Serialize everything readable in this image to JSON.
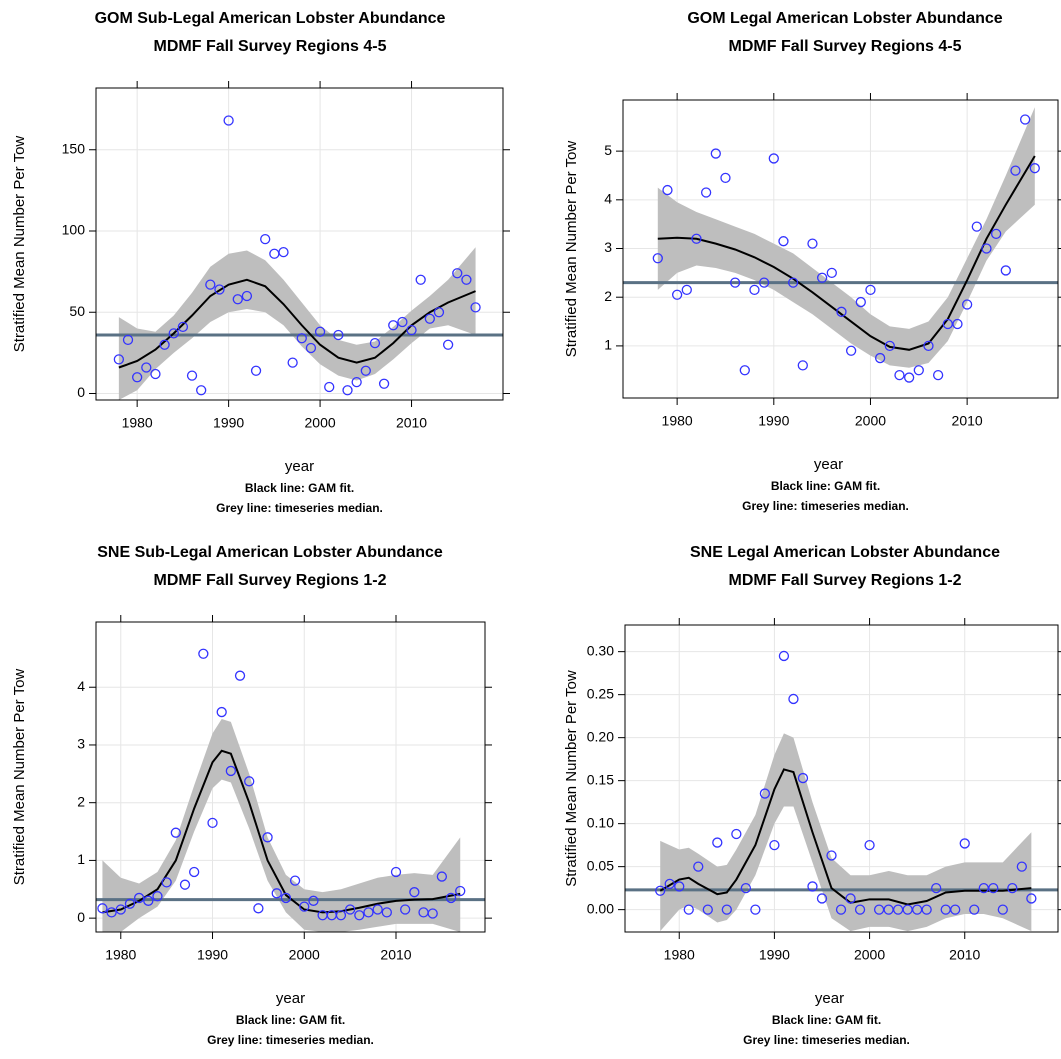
{
  "chart_data": [
    {
      "type": "scatter",
      "title": "GOM Sub-Legal American Lobster Abundance",
      "subtitle": "MDMF Fall Survey Regions 4-5",
      "xlabel": "year",
      "ylabel": "Stratified Mean Number Per Tow",
      "notes": [
        "Black line: GAM fit.",
        "Grey line: timeseries median."
      ],
      "xlim": [
        1975.5,
        2020
      ],
      "xticks": [
        1980,
        1990,
        2000,
        2010
      ],
      "ylim": [
        -4,
        188
      ],
      "yticks": [
        0,
        50,
        100,
        150
      ],
      "grid": true,
      "points": {
        "color": "#3333ff",
        "x": [
          1978,
          1979,
          1980,
          1981,
          1982,
          1983,
          1984,
          1985,
          1986,
          1987,
          1988,
          1989,
          1990,
          1991,
          1992,
          1993,
          1994,
          1995,
          1996,
          1997,
          1998,
          1999,
          2000,
          2001,
          2002,
          2003,
          2004,
          2005,
          2006,
          2007,
          2008,
          2009,
          2010,
          2011,
          2012,
          2013,
          2014,
          2015,
          2016,
          2017
        ],
        "values": [
          21,
          33,
          10,
          16,
          12,
          30,
          37,
          41,
          11,
          2,
          67,
          64,
          168,
          58,
          60,
          14,
          95,
          86,
          87,
          19,
          34,
          28,
          38,
          4,
          36,
          2,
          7,
          14,
          31,
          6,
          42,
          44,
          39,
          70,
          46,
          50,
          30,
          74,
          70,
          53
        ]
      },
      "fit": {
        "color": "#000000",
        "band_color": "#bebebe",
        "x": [
          1978,
          1980,
          1982,
          1984,
          1986,
          1988,
          1990,
          1992,
          1994,
          1996,
          1998,
          2000,
          2002,
          2004,
          2006,
          2008,
          2010,
          2012,
          2014,
          2017
        ],
        "values": [
          16,
          20,
          27,
          37,
          48,
          60,
          67,
          70,
          66,
          55,
          42,
          30,
          22,
          19,
          22,
          31,
          42,
          50,
          56,
          63
        ],
        "upper": [
          47,
          40,
          38,
          48,
          62,
          78,
          86,
          88,
          82,
          70,
          56,
          42,
          33,
          30,
          32,
          41,
          51,
          60,
          70,
          90
        ],
        "lower": [
          -4,
          2,
          15,
          25,
          34,
          44,
          50,
          52,
          50,
          42,
          29,
          18,
          11,
          8,
          12,
          21,
          31,
          40,
          42,
          36
        ]
      },
      "median": {
        "value": 36,
        "color": "#5a7184"
      }
    },
    {
      "type": "scatter",
      "title": "GOM Legal American Lobster Abundance",
      "subtitle": "MDMF Fall Survey Regions 4-5",
      "xlabel": "year",
      "ylabel": "Stratified Mean Number Per Tow",
      "notes": [
        "Black line: GAM fit.",
        "Grey line: timeseries median."
      ],
      "xlim": [
        1974.4,
        2019.4
      ],
      "xticks": [
        1980,
        1990,
        2000,
        2010
      ],
      "ylim": [
        -0.07,
        6.05
      ],
      "yticks": [
        1,
        2,
        3,
        4,
        5
      ],
      "grid": true,
      "points": {
        "color": "#3333ff",
        "x": [
          1978,
          1979,
          1980,
          1981,
          1982,
          1983,
          1984,
          1985,
          1986,
          1987,
          1988,
          1989,
          1990,
          1991,
          1992,
          1993,
          1994,
          1995,
          1996,
          1997,
          1998,
          1999,
          2000,
          2001,
          2002,
          2003,
          2004,
          2005,
          2006,
          2007,
          2008,
          2009,
          2010,
          2011,
          2012,
          2013,
          2014,
          2015,
          2016,
          2017
        ],
        "values": [
          2.8,
          4.2,
          2.05,
          2.15,
          3.2,
          4.15,
          4.95,
          4.45,
          2.3,
          0.5,
          2.15,
          2.3,
          4.85,
          3.15,
          2.3,
          0.6,
          3.1,
          2.4,
          2.5,
          1.7,
          0.9,
          1.9,
          2.15,
          0.75,
          1.0,
          0.4,
          0.35,
          0.5,
          1.0,
          0.4,
          1.45,
          1.45,
          1.85,
          3.45,
          3.0,
          3.3,
          2.55,
          4.6,
          5.65,
          4.65
        ]
      },
      "fit": {
        "color": "#000000",
        "band_color": "#bebebe",
        "x": [
          1978,
          1980,
          1982,
          1984,
          1986,
          1988,
          1990,
          1992,
          1994,
          1996,
          1998,
          2000,
          2002,
          2004,
          2006,
          2008,
          2010,
          2012,
          2014,
          2017
        ],
        "values": [
          3.2,
          3.22,
          3.2,
          3.1,
          2.98,
          2.82,
          2.62,
          2.38,
          2.1,
          1.8,
          1.5,
          1.2,
          0.98,
          0.92,
          1.05,
          1.55,
          2.35,
          3.2,
          3.9,
          4.9
        ],
        "upper": [
          4.25,
          3.95,
          3.75,
          3.6,
          3.45,
          3.3,
          3.1,
          2.9,
          2.6,
          2.3,
          2.0,
          1.65,
          1.4,
          1.35,
          1.5,
          2.0,
          2.8,
          3.6,
          4.5,
          5.9
        ],
        "lower": [
          2.15,
          2.5,
          2.65,
          2.6,
          2.5,
          2.35,
          2.15,
          1.9,
          1.65,
          1.35,
          1.05,
          0.8,
          0.6,
          0.55,
          0.65,
          1.1,
          1.9,
          2.75,
          3.35,
          3.9
        ]
      },
      "median": {
        "value": 2.3,
        "color": "#5a7184"
      }
    },
    {
      "type": "scatter",
      "title": "SNE Sub-Legal American Lobster Abundance",
      "subtitle": "MDMF Fall Survey Regions 1-2",
      "xlabel": "year",
      "ylabel": "Stratified Mean Number Per Tow",
      "notes": [
        "Black line: GAM fit.",
        "Grey line: timeseries median."
      ],
      "xlim": [
        1977.3,
        2019.7
      ],
      "xticks": [
        1980,
        1990,
        2000,
        2010
      ],
      "ylim": [
        -0.24,
        5.13
      ],
      "yticks": [
        0,
        1,
        2,
        3,
        4
      ],
      "grid": true,
      "points": {
        "color": "#3333ff",
        "x": [
          1978,
          1979,
          1980,
          1981,
          1982,
          1983,
          1984,
          1985,
          1986,
          1987,
          1988,
          1989,
          1990,
          1991,
          1992,
          1993,
          1994,
          1995,
          1996,
          1997,
          1998,
          1999,
          2000,
          2001,
          2002,
          2003,
          2004,
          2005,
          2006,
          2007,
          2008,
          2009,
          2010,
          2011,
          2012,
          2013,
          2014,
          2015,
          2016,
          2017
        ],
        "values": [
          0.17,
          0.1,
          0.15,
          0.25,
          0.35,
          0.3,
          0.38,
          0.62,
          1.48,
          0.58,
          0.8,
          4.58,
          1.65,
          3.57,
          2.55,
          4.2,
          2.37,
          0.17,
          1.4,
          0.43,
          0.35,
          0.65,
          0.2,
          0.3,
          0.05,
          0.05,
          0.05,
          0.15,
          0.05,
          0.1,
          0.15,
          0.1,
          0.8,
          0.15,
          0.45,
          0.1,
          0.08,
          0.72,
          0.35,
          0.47
        ]
      },
      "fit": {
        "color": "#000000",
        "band_color": "#bebebe",
        "x": [
          1978,
          1980,
          1982,
          1984,
          1986,
          1988,
          1990,
          1991,
          1992,
          1994,
          1996,
          1998,
          2000,
          2002,
          2004,
          2006,
          2008,
          2010,
          2012,
          2014,
          2017
        ],
        "values": [
          0.1,
          0.15,
          0.3,
          0.5,
          1.0,
          1.9,
          2.7,
          2.9,
          2.85,
          2.0,
          1.0,
          0.4,
          0.15,
          0.1,
          0.12,
          0.18,
          0.25,
          0.3,
          0.32,
          0.33,
          0.42
        ],
        "upper": [
          1.0,
          0.7,
          0.6,
          0.8,
          1.35,
          2.3,
          3.2,
          3.45,
          3.4,
          2.5,
          1.4,
          0.75,
          0.5,
          0.45,
          0.5,
          0.6,
          0.7,
          0.75,
          0.78,
          0.75,
          1.4
        ],
        "lower": [
          -0.24,
          -0.24,
          0,
          0.2,
          0.65,
          1.5,
          2.25,
          2.4,
          2.35,
          1.55,
          0.65,
          0.1,
          -0.2,
          -0.24,
          -0.24,
          -0.2,
          -0.15,
          -0.1,
          -0.1,
          -0.1,
          -0.24
        ]
      },
      "median": {
        "value": 0.32,
        "color": "#5a7184"
      }
    },
    {
      "type": "scatter",
      "title": "SNE Legal American Lobster Abundance",
      "subtitle": "MDMF Fall Survey Regions 1-2",
      "xlabel": "year",
      "ylabel": "Stratified Mean Number Per Tow",
      "notes": [
        "Black line: GAM fit.",
        "Grey line: timeseries median."
      ],
      "xlim": [
        1974.3,
        2019.8
      ],
      "xticks": [
        1980,
        1990,
        2000,
        2010
      ],
      "ylim": [
        -0.026,
        0.331
      ],
      "yticks": [
        {
          "value": 0,
          "label": "0.00"
        },
        0.05,
        {
          "value": 0.1,
          "label": "0.10"
        },
        0.15,
        {
          "value": 0.2,
          "label": "0.20"
        },
        0.25,
        {
          "value": 0.3,
          "label": "0.30"
        }
      ],
      "grid": true,
      "points": {
        "color": "#3333ff",
        "x": [
          1978,
          1979,
          1980,
          1981,
          1982,
          1983,
          1984,
          1985,
          1986,
          1987,
          1988,
          1989,
          1990,
          1991,
          1992,
          1993,
          1994,
          1995,
          1996,
          1997,
          1998,
          1999,
          2000,
          2001,
          2002,
          2003,
          2004,
          2005,
          2006,
          2007,
          2008,
          2009,
          2010,
          2011,
          2012,
          2013,
          2014,
          2015,
          2016,
          2017
        ],
        "values": [
          0.022,
          0.03,
          0.027,
          0,
          0.05,
          0,
          0.078,
          0,
          0.088,
          0.025,
          0,
          0.135,
          0.075,
          0.295,
          0.245,
          0.153,
          0.027,
          0.013,
          0.063,
          0,
          0.013,
          0,
          0.075,
          0,
          0,
          0,
          0,
          0,
          0,
          0.025,
          0,
          0,
          0.077,
          0,
          0.025,
          0.025,
          0,
          0.025,
          0.05,
          0.013
        ]
      },
      "fit": {
        "color": "#000000",
        "band_color": "#bebebe",
        "x": [
          1978,
          1980,
          1981,
          1982,
          1984,
          1985,
          1986,
          1988,
          1990,
          1991,
          1992,
          1994,
          1996,
          1998,
          2000,
          2002,
          2004,
          2006,
          2008,
          2010,
          2012,
          2014,
          2017
        ],
        "values": [
          0.022,
          0.035,
          0.037,
          0.03,
          0.018,
          0.02,
          0.035,
          0.075,
          0.14,
          0.163,
          0.16,
          0.09,
          0.025,
          0.008,
          0.012,
          0.012,
          0.006,
          0.01,
          0.02,
          0.022,
          0.022,
          0.022,
          0.025
        ],
        "upper": [
          0.08,
          0.07,
          0.072,
          0.065,
          0.05,
          0.052,
          0.07,
          0.11,
          0.18,
          0.205,
          0.2,
          0.125,
          0.06,
          0.04,
          0.04,
          0.045,
          0.04,
          0.04,
          0.05,
          0.055,
          0.055,
          0.055,
          0.09
        ],
        "lower": [
          -0.025,
          0,
          0.005,
          0,
          -0.015,
          -0.012,
          0,
          0.04,
          0.1,
          0.12,
          0.12,
          0.055,
          -0.01,
          -0.025,
          -0.02,
          -0.02,
          -0.025,
          -0.02,
          -0.01,
          -0.005,
          -0.005,
          -0.01,
          -0.025
        ]
      },
      "median": {
        "value": 0.023,
        "color": "#5a7184"
      }
    }
  ]
}
